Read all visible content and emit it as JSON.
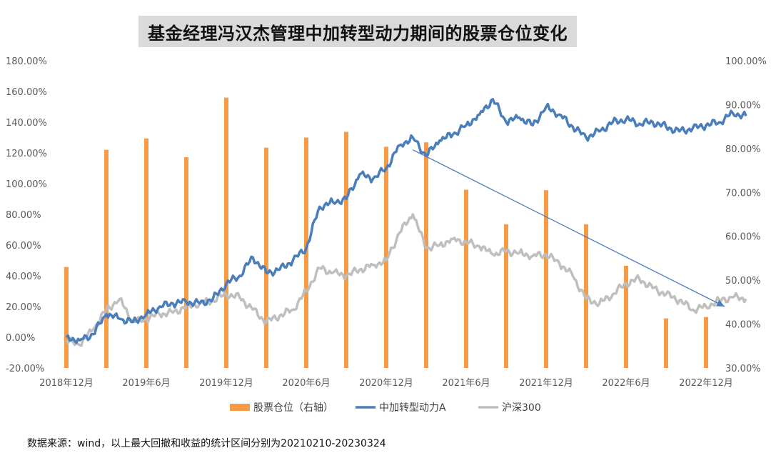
{
  "colors": {
    "position": "#F59A45",
    "fund": "#4A7EBB",
    "index": "#BFBFBF",
    "arrow": "#4A7EBB"
  },
  "chart_data": {
    "type": "bar+line",
    "title": "基金经理冯汉杰管理中加转型动力期间的股票仓位变化",
    "y_left": {
      "ticks": [
        "-20.00%",
        "0.00%",
        "20.00%",
        "40.00%",
        "60.00%",
        "80.00%",
        "100.00%",
        "120.00%",
        "140.00%",
        "160.00%",
        "180.00%"
      ],
      "range": [
        -20,
        180
      ]
    },
    "y_right": {
      "ticks": [
        "30.00%",
        "40.00%",
        "50.00%",
        "60.00%",
        "70.00%",
        "80.00%",
        "90.00%",
        "100.00%"
      ],
      "range": [
        30,
        100
      ]
    },
    "x_ticks": [
      "2018年12月",
      "2019年6月",
      "2019年12月",
      "2020年6月",
      "2020年12月",
      "2021年6月",
      "2021年12月",
      "2022年6月",
      "2022年12月"
    ],
    "legend": [
      {
        "name": "股票仓位（右轴）",
        "type": "bar"
      },
      {
        "name": "中加转型动力A",
        "type": "line"
      },
      {
        "name": "沪深300",
        "type": "line"
      }
    ],
    "bars": {
      "name": "股票仓位（右轴）",
      "axis": "right",
      "x": [
        "2018-12",
        "2019-03",
        "2019-06",
        "2019-09",
        "2019-12",
        "2020-03",
        "2020-06",
        "2020-09",
        "2020-12",
        "2021-03",
        "2021-06",
        "2021-09",
        "2021-12",
        "2022-03",
        "2022-06",
        "2022-09",
        "2022-12"
      ],
      "values": [
        53.0,
        79.7,
        82.3,
        78.0,
        91.6,
        80.2,
        82.5,
        83.8,
        80.4,
        81.4,
        70.6,
        62.7,
        70.5,
        62.7,
        53.3,
        41.3,
        41.6
      ]
    },
    "series": [
      {
        "name": "中加转型动力A",
        "axis": "left",
        "x": [
          "2018-12",
          "2019-01",
          "2019-02",
          "2019-03",
          "2019-04",
          "2019-05",
          "2019-06",
          "2019-07",
          "2019-08",
          "2019-09",
          "2019-10",
          "2019-11",
          "2019-12",
          "2020-01",
          "2020-02",
          "2020-03",
          "2020-04",
          "2020-05",
          "2020-06",
          "2020-07",
          "2020-08",
          "2020-09",
          "2020-10",
          "2020-11",
          "2020-12",
          "2021-01",
          "2021-02",
          "2021-03",
          "2021-04",
          "2021-05",
          "2021-06",
          "2021-07",
          "2021-08",
          "2021-09",
          "2021-10",
          "2021-11",
          "2021-12",
          "2022-01",
          "2022-02",
          "2022-03",
          "2022-04",
          "2022-05",
          "2022-06",
          "2022-07",
          "2022-08",
          "2022-09",
          "2022-10",
          "2022-11",
          "2022-12",
          "2023-01",
          "2023-02",
          "2023-03"
        ],
        "values": [
          0,
          -2,
          2,
          15,
          12,
          10,
          15,
          20,
          22,
          23,
          22,
          25,
          35,
          40,
          52,
          42,
          44,
          50,
          58,
          85,
          88,
          90,
          106,
          103,
          110,
          125,
          130,
          118,
          128,
          132,
          138,
          145,
          155,
          140,
          143,
          138,
          150,
          145,
          137,
          130,
          134,
          140,
          142,
          139,
          140,
          137,
          134,
          136,
          138,
          140,
          146,
          144
        ]
      },
      {
        "name": "沪深300",
        "axis": "left",
        "x": [
          "2018-12",
          "2019-01",
          "2019-02",
          "2019-03",
          "2019-04",
          "2019-05",
          "2019-06",
          "2019-07",
          "2019-08",
          "2019-09",
          "2019-10",
          "2019-11",
          "2019-12",
          "2020-01",
          "2020-02",
          "2020-03",
          "2020-04",
          "2020-05",
          "2020-06",
          "2020-07",
          "2020-08",
          "2020-09",
          "2020-10",
          "2020-11",
          "2020-12",
          "2021-01",
          "2021-02",
          "2021-03",
          "2021-04",
          "2021-05",
          "2021-06",
          "2021-07",
          "2021-08",
          "2021-09",
          "2021-10",
          "2021-11",
          "2021-12",
          "2022-01",
          "2022-02",
          "2022-03",
          "2022-04",
          "2022-05",
          "2022-06",
          "2022-07",
          "2022-08",
          "2022-09",
          "2022-10",
          "2022-11",
          "2022-12",
          "2023-01",
          "2023-02",
          "2023-03"
        ],
        "values": [
          -2,
          -5,
          5,
          18,
          25,
          10,
          12,
          15,
          16,
          20,
          22,
          24,
          28,
          26,
          18,
          10,
          14,
          18,
          30,
          45,
          42,
          40,
          44,
          47,
          50,
          68,
          80,
          58,
          60,
          64,
          62,
          59,
          54,
          56,
          55,
          53,
          54,
          48,
          40,
          25,
          22,
          28,
          35,
          38,
          32,
          28,
          24,
          18,
          20,
          24,
          26,
          25
        ]
      }
    ],
    "annotation": {
      "type": "arrow",
      "from": [
        "2021-02",
        122
      ],
      "to": [
        "2023-03",
        20
      ]
    },
    "source_note": "数据来源：wind，以上最大回撤和收益的统计区间分别为20210210-20230324"
  }
}
